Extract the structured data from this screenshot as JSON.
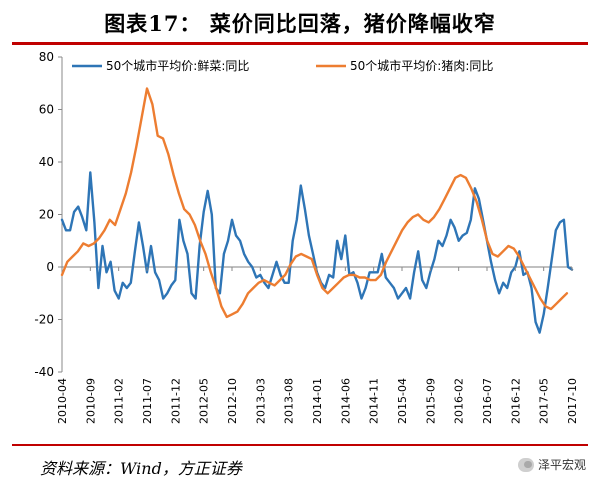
{
  "title": "图表17：  菜价同比回落，猪价降幅收窄",
  "source": "资料来源：Wind，方正证券",
  "watermark": "泽平宏观",
  "colors": {
    "series1": "#2e75b6",
    "series2": "#ed7d31",
    "frame": "#c00000",
    "zeroline": "#808080"
  },
  "chart_data": {
    "type": "line",
    "title": "",
    "xlabel": "",
    "ylabel": "",
    "ylim": [
      -40,
      80
    ],
    "yticks": [
      "80",
      "60",
      "40",
      "20",
      "0",
      "-20",
      "-40"
    ],
    "ytick_values": [
      80,
      60,
      40,
      20,
      0,
      -20,
      -40
    ],
    "x_start": "2010-04",
    "x_end": "2017-10",
    "x_tick_labels": [
      "2010-04",
      "2010-09",
      "2011-02",
      "2011-07",
      "2011-12",
      "2012-05",
      "2012-10",
      "2013-03",
      "2013-08",
      "2014-01",
      "2014-06",
      "2014-11",
      "2015-04",
      "2015-09",
      "2016-02",
      "2016-07",
      "2016-12",
      "2017-05",
      "2017-10"
    ],
    "series": [
      {
        "name": "50个城市平均价:鲜菜:同比",
        "points": [
          [
            0,
            18
          ],
          [
            1,
            14
          ],
          [
            2,
            14
          ],
          [
            3,
            21
          ],
          [
            4,
            23
          ],
          [
            5,
            19
          ],
          [
            6,
            14
          ],
          [
            7,
            36
          ],
          [
            8,
            17
          ],
          [
            9,
            -8
          ],
          [
            10,
            8
          ],
          [
            11,
            -2
          ],
          [
            12,
            2
          ],
          [
            13,
            -9
          ],
          [
            14,
            -12
          ],
          [
            15,
            -6
          ],
          [
            16,
            -8
          ],
          [
            17,
            -6
          ],
          [
            18,
            6
          ],
          [
            19,
            17
          ],
          [
            20,
            8
          ],
          [
            21,
            -2
          ],
          [
            22,
            8
          ],
          [
            23,
            -2
          ],
          [
            24,
            -5
          ],
          [
            25,
            -12
          ],
          [
            26,
            -10
          ],
          [
            27,
            -7
          ],
          [
            28,
            -5
          ],
          [
            29,
            18
          ],
          [
            30,
            10
          ],
          [
            31,
            5
          ],
          [
            32,
            -10
          ],
          [
            33,
            -12
          ],
          [
            34,
            8
          ],
          [
            35,
            21
          ],
          [
            36,
            29
          ],
          [
            37,
            20
          ],
          [
            38,
            -8
          ],
          [
            39,
            -10
          ],
          [
            40,
            5
          ],
          [
            41,
            10
          ],
          [
            42,
            18
          ],
          [
            43,
            12
          ],
          [
            44,
            10
          ],
          [
            45,
            5
          ],
          [
            46,
            2
          ],
          [
            47,
            0
          ],
          [
            48,
            -4
          ],
          [
            49,
            -3
          ],
          [
            50,
            -6
          ],
          [
            51,
            -8
          ],
          [
            52,
            -3
          ],
          [
            53,
            2
          ],
          [
            54,
            -3
          ],
          [
            55,
            -6
          ],
          [
            56,
            -6
          ],
          [
            57,
            10
          ],
          [
            58,
            18
          ],
          [
            59,
            31
          ],
          [
            60,
            22
          ],
          [
            61,
            12
          ],
          [
            62,
            5
          ],
          [
            63,
            -2
          ],
          [
            64,
            -6
          ],
          [
            65,
            -8
          ],
          [
            66,
            -3
          ],
          [
            67,
            -4
          ],
          [
            68,
            10
          ],
          [
            69,
            3
          ],
          [
            70,
            12
          ],
          [
            71,
            -3
          ],
          [
            72,
            -2
          ],
          [
            73,
            -6
          ],
          [
            74,
            -12
          ],
          [
            75,
            -8
          ],
          [
            76,
            -2
          ],
          [
            77,
            -2
          ],
          [
            78,
            -2
          ],
          [
            79,
            5
          ],
          [
            80,
            -4
          ],
          [
            81,
            -6
          ],
          [
            82,
            -8
          ],
          [
            83,
            -12
          ],
          [
            84,
            -10
          ],
          [
            85,
            -8
          ],
          [
            86,
            -12
          ],
          [
            87,
            -2
          ],
          [
            88,
            6
          ],
          [
            89,
            -5
          ],
          [
            90,
            -8
          ],
          [
            91,
            -2
          ],
          [
            92,
            3
          ],
          [
            93,
            10
          ],
          [
            94,
            8
          ],
          [
            95,
            12
          ],
          [
            96,
            18
          ],
          [
            97,
            15
          ],
          [
            98,
            10
          ],
          [
            99,
            12
          ],
          [
            100,
            13
          ],
          [
            101,
            18
          ],
          [
            102,
            30
          ],
          [
            103,
            26
          ],
          [
            104,
            18
          ],
          [
            105,
            10
          ],
          [
            106,
            2
          ],
          [
            107,
            -5
          ],
          [
            108,
            -10
          ],
          [
            109,
            -6
          ],
          [
            110,
            -8
          ],
          [
            111,
            -2
          ],
          [
            112,
            0
          ],
          [
            113,
            6
          ],
          [
            114,
            -3
          ],
          [
            115,
            -2
          ],
          [
            116,
            -8
          ],
          [
            117,
            -21
          ],
          [
            118,
            -25
          ],
          [
            119,
            -18
          ],
          [
            120,
            -8
          ],
          [
            121,
            3
          ],
          [
            122,
            14
          ],
          [
            123,
            17
          ],
          [
            124,
            18
          ],
          [
            125,
            0
          ],
          [
            126,
            -1
          ]
        ]
      },
      {
        "name": "50个城市平均价:猪肉:同比",
        "points": [
          [
            0,
            -3
          ],
          [
            1,
            2
          ],
          [
            2,
            4
          ],
          [
            3,
            6
          ],
          [
            4,
            9
          ],
          [
            5,
            8
          ],
          [
            6,
            9
          ],
          [
            7,
            11
          ],
          [
            8,
            14
          ],
          [
            9,
            18
          ],
          [
            10,
            16
          ],
          [
            11,
            22
          ],
          [
            12,
            28
          ],
          [
            13,
            36
          ],
          [
            14,
            46
          ],
          [
            15,
            57
          ],
          [
            16,
            68
          ],
          [
            17,
            62
          ],
          [
            18,
            50
          ],
          [
            19,
            49
          ],
          [
            20,
            43
          ],
          [
            21,
            35
          ],
          [
            22,
            28
          ],
          [
            23,
            22
          ],
          [
            24,
            20
          ],
          [
            25,
            16
          ],
          [
            26,
            10
          ],
          [
            27,
            5
          ],
          [
            28,
            -2
          ],
          [
            29,
            -8
          ],
          [
            30,
            -15
          ],
          [
            31,
            -19
          ],
          [
            32,
            -18
          ],
          [
            33,
            -17
          ],
          [
            34,
            -14
          ],
          [
            35,
            -10
          ],
          [
            36,
            -8
          ],
          [
            37,
            -6
          ],
          [
            38,
            -5
          ],
          [
            39,
            -6
          ],
          [
            40,
            -7
          ],
          [
            41,
            -5
          ],
          [
            42,
            -3
          ],
          [
            43,
            1
          ],
          [
            44,
            4
          ],
          [
            45,
            5
          ],
          [
            46,
            4
          ],
          [
            47,
            3
          ],
          [
            48,
            -3
          ],
          [
            49,
            -8
          ],
          [
            50,
            -10
          ],
          [
            51,
            -8
          ],
          [
            52,
            -6
          ],
          [
            53,
            -4
          ],
          [
            54,
            -3
          ],
          [
            55,
            -3
          ],
          [
            56,
            -4
          ],
          [
            57,
            -4
          ],
          [
            58,
            -5
          ],
          [
            59,
            -5
          ],
          [
            60,
            -3
          ],
          [
            61,
            2
          ],
          [
            62,
            6
          ],
          [
            63,
            10
          ],
          [
            64,
            14
          ],
          [
            65,
            17
          ],
          [
            66,
            19
          ],
          [
            67,
            20
          ],
          [
            68,
            18
          ],
          [
            69,
            17
          ],
          [
            70,
            19
          ],
          [
            71,
            22
          ],
          [
            72,
            26
          ],
          [
            73,
            30
          ],
          [
            74,
            34
          ],
          [
            75,
            35
          ],
          [
            76,
            34
          ],
          [
            77,
            30
          ],
          [
            78,
            25
          ],
          [
            79,
            18
          ],
          [
            80,
            10
          ],
          [
            81,
            5
          ],
          [
            82,
            4
          ],
          [
            83,
            6
          ],
          [
            84,
            8
          ],
          [
            85,
            7
          ],
          [
            86,
            4
          ],
          [
            87,
            0
          ],
          [
            88,
            -4
          ],
          [
            89,
            -8
          ],
          [
            90,
            -12
          ],
          [
            91,
            -15
          ],
          [
            92,
            -16
          ],
          [
            93,
            -14
          ],
          [
            94,
            -12
          ],
          [
            95,
            -10
          ]
        ]
      }
    ],
    "series2_end_fraction": 0.99
  }
}
